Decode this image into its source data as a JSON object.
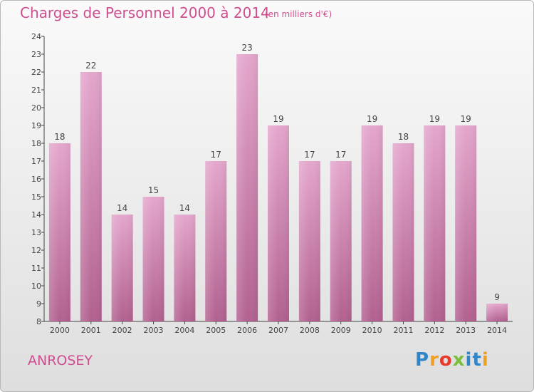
{
  "chart_data": {
    "type": "bar",
    "title": "Charges de Personnel 2000 à 2014",
    "subtitle": "(en milliers d'€)",
    "categories": [
      "2000",
      "2001",
      "2002",
      "2003",
      "2004",
      "2005",
      "2006",
      "2007",
      "2008",
      "2009",
      "2010",
      "2011",
      "2012",
      "2013",
      "2014"
    ],
    "values": [
      18,
      22,
      14,
      15,
      14,
      17,
      23,
      19,
      17,
      17,
      19,
      18,
      19,
      19,
      9
    ],
    "ylim": [
      8,
      24
    ],
    "yticks": [
      8,
      9,
      10,
      11,
      12,
      13,
      14,
      15,
      16,
      17,
      18,
      19,
      20,
      21,
      22,
      23,
      24
    ],
    "grid": false,
    "bar_color": "#d98cbb",
    "xlabel": "",
    "ylabel": ""
  },
  "footer": {
    "place": "ANROSEY",
    "logo_letters": [
      "P",
      "r",
      "o",
      "x",
      "i",
      "t",
      "i"
    ]
  }
}
